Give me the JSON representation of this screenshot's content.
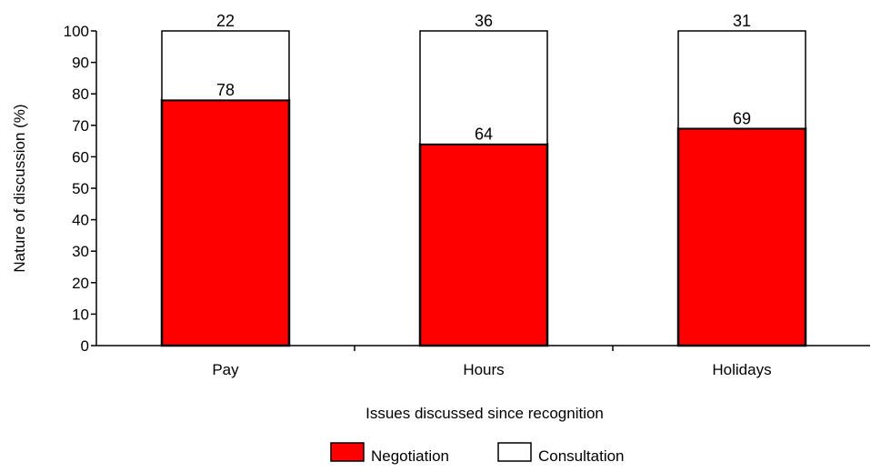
{
  "chart_data": {
    "type": "bar",
    "stacked": true,
    "categories": [
      "Pay",
      "Hours",
      "Holidays"
    ],
    "series": [
      {
        "name": "Negotiation",
        "values": [
          78,
          64,
          69
        ],
        "color": "#ff0000"
      },
      {
        "name": "Consultation",
        "values": [
          22,
          36,
          31
        ],
        "color": "#ffffff"
      }
    ],
    "xlabel": "Issues discussed since recognition",
    "ylabel": "Nature of discussion (%)",
    "ylim": [
      0,
      100
    ],
    "yticks": [
      0,
      10,
      20,
      30,
      40,
      50,
      60,
      70,
      80,
      90,
      100
    ],
    "grid": false,
    "legend_position": "bottom-center"
  }
}
